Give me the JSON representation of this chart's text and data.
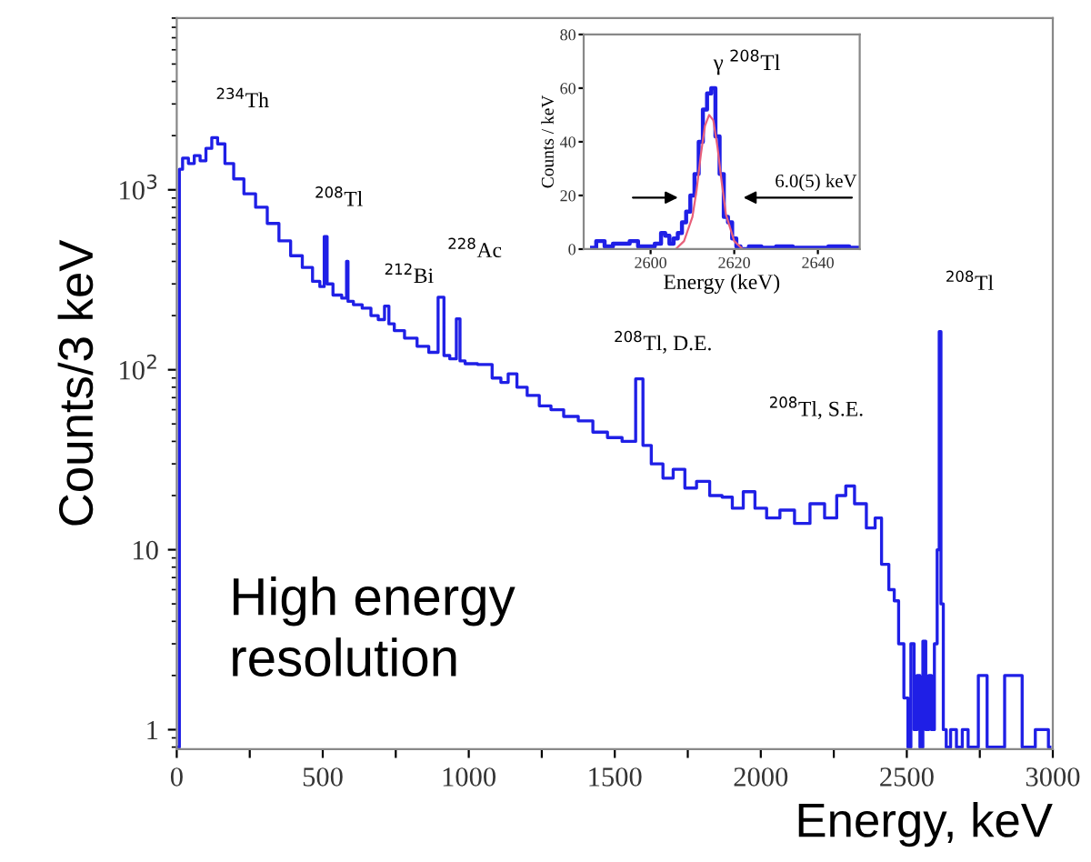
{
  "chart_data": [
    {
      "type": "step",
      "xlabel": "Energy, keV",
      "ylabel": "Counts/3 keV",
      "log": "y",
      "grid": false,
      "xlim": [
        0,
        3000
      ],
      "xticks": [
        0,
        {
          "value": 250,
          "label": null
        },
        500,
        {
          "value": 750,
          "label": null
        },
        1000,
        {
          "value": 1250,
          "label": null
        },
        1500,
        {
          "value": 1750,
          "label": null
        },
        2000,
        {
          "value": 2250,
          "label": null
        },
        2500,
        {
          "value": 2750,
          "label": null
        },
        3000
      ],
      "ylim": [
        0.78,
        9000
      ],
      "yticks": [
        1,
        10,
        {
          "value": 100,
          "label": "10$^{2}$"
        },
        {
          "value": 1000,
          "label": "10$^{3}$"
        }
      ],
      "series": [
        {
          "color": "#1f1fe6",
          "x": [
            0,
            8,
            10,
            30,
            50,
            70,
            90,
            110,
            130,
            150,
            180,
            210,
            250,
            290,
            330,
            370,
            410,
            450,
            480,
            500,
            510,
            520,
            550,
            580,
            583,
            590,
            620,
            650,
            680,
            700,
            723,
            730,
            760,
            800,
            846,
            880,
            910,
            920,
            950,
            965,
            975,
            1000,
            1060,
            1100,
            1120,
            1150,
            1180,
            1220,
            1263,
            1300,
            1350,
            1400,
            1450,
            1500,
            1550,
            1593,
            1600,
            1650,
            1680,
            1720,
            1760,
            1800,
            1850,
            1885,
            1920,
            1960,
            2000,
            2040,
            2091,
            2140,
            2197,
            2240,
            2280,
            2302,
            2340,
            2383,
            2400,
            2427,
            2450,
            2464,
            2480,
            2500,
            2508,
            2520,
            2530,
            2540,
            2550,
            2560,
            2570,
            2580,
            2589,
            2600,
            2608,
            2614,
            2620,
            2630,
            2640,
            2660,
            2680,
            2700,
            2720,
            2770,
            2780,
            2890,
            2900,
            2980,
            2990
          ],
          "values": [
            0.8,
            0.8,
            1300,
            1500,
            1400,
            1550,
            1450,
            1700,
            1950,
            1800,
            1400,
            1150,
            950,
            800,
            650,
            520,
            430,
            370,
            310,
            290,
            550,
            300,
            260,
            250,
            400,
            240,
            230,
            220,
            200,
            190,
            226,
            180,
            165,
            150,
            135,
            125,
            253,
            120,
            115,
            192,
            112,
            108,
            107,
            90,
            85,
            95,
            80,
            72,
            63,
            60,
            55,
            52,
            45,
            42,
            40,
            89,
            38,
            30,
            25,
            28,
            22,
            24,
            20,
            19.6,
            17,
            21,
            17,
            15,
            16.6,
            14,
            18,
            15,
            20,
            22.6,
            18,
            13.2,
            15,
            8.3,
            6,
            5.2,
            3,
            1.5,
            0.8,
            3,
            1,
            2,
            0.8,
            3.1,
            1,
            2,
            1,
            3,
            10,
            163,
            5,
            1,
            0.8,
            1,
            0.8,
            1,
            0.8,
            2,
            0.8,
            2,
            0.8,
            1,
            0.8
          ]
        }
      ],
      "annotations": [
        "$^{234}$Th",
        "$^{208}$Tl",
        "$^{212}$Bi",
        "$^{228}$Ac",
        "$^{208}$Tl, D.E.",
        "$^{208}$Tl, S.E.",
        "$^{208}$Tl",
        "High energy\nresolution"
      ]
    },
    {
      "type": "step",
      "xlabel": "Energy (keV)",
      "ylabel": "Counts / keV",
      "grid": false,
      "xlim": [
        2584,
        2650
      ],
      "xticks": [
        2600,
        2620,
        2640
      ],
      "ylim": [
        0,
        80
      ],
      "yticks": [
        0,
        20,
        40,
        60,
        80
      ],
      "series": [
        {
          "color": "#1f1fe6",
          "x": [
            2586,
            2588,
            2590,
            2592,
            2594,
            2596,
            2598,
            2600,
            2602,
            2603,
            2604,
            2605,
            2606,
            2607,
            2608,
            2609,
            2610,
            2611,
            2612,
            2613,
            2614,
            2615,
            2616,
            2617,
            2618,
            2619,
            2620,
            2621,
            2622,
            2625,
            2628,
            2632,
            2636,
            2640,
            2645,
            2650
          ],
          "values": [
            0.5,
            3,
            1,
            2,
            2,
            3,
            1,
            1,
            2,
            6,
            5,
            2,
            4,
            6,
            10,
            14,
            20,
            28,
            40,
            52,
            58,
            60,
            42,
            28,
            12,
            10,
            4,
            1,
            0,
            1,
            0.5,
            1,
            0.5,
            0.5,
            1,
            0.5
          ]
        },
        {
          "type": "line",
          "color": "#e8607a",
          "x": [
            2606,
            2608,
            2610,
            2611,
            2612,
            2613,
            2614,
            2615,
            2616,
            2617,
            2618,
            2620,
            2622
          ],
          "values": [
            0,
            3,
            12,
            22,
            35,
            46,
            50,
            48,
            38,
            25,
            13,
            3,
            0
          ]
        }
      ],
      "annotations": [
        "γ $^{208}$Tl",
        "6.0(5) keV"
      ]
    }
  ]
}
